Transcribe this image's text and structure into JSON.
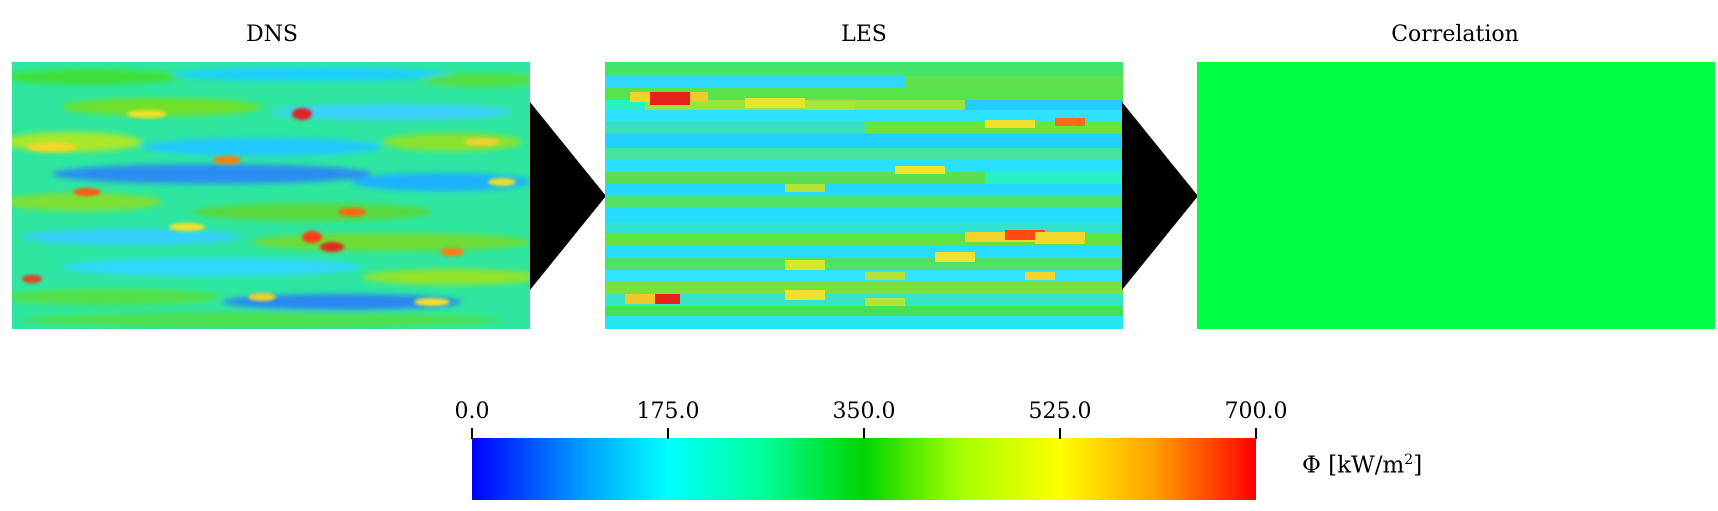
{
  "panels": [
    {
      "title": "DNS",
      "fill": "#33e67f"
    },
    {
      "title": "LES",
      "fill": "#2ff0b0"
    },
    {
      "title": "Correlation",
      "fill": "#00ff44"
    }
  ],
  "colorbar": {
    "ticks": [
      "0.0",
      "175.0",
      "350.0",
      "525.0",
      "700.0"
    ],
    "min": 0,
    "max": 700,
    "label_symbol": "Φ",
    "label_unit": "[kW/m",
    "label_power": "2",
    "label_close": "]",
    "colors": [
      "#0000ff",
      "#00ffff",
      "#00d400",
      "#ffff00",
      "#ff0000"
    ]
  },
  "arrow_color": "#000000"
}
